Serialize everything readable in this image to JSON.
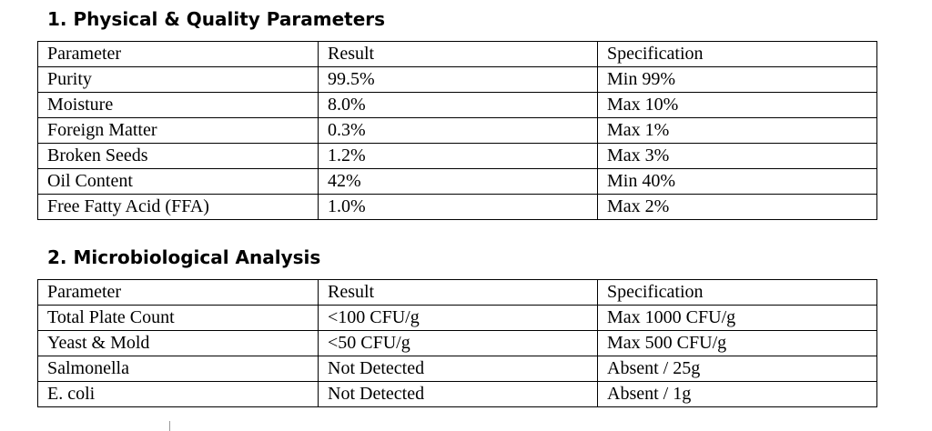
{
  "sections": [
    {
      "title": "1. Physical & Quality Parameters",
      "table": {
        "header": [
          "Parameter",
          "Result",
          "Specification"
        ],
        "rows": [
          [
            "Purity",
            "99.5%",
            "Min 99%"
          ],
          [
            "Moisture",
            "8.0%",
            "Max 10%"
          ],
          [
            "Foreign Matter",
            "0.3%",
            "Max 1%"
          ],
          [
            "Broken Seeds",
            "1.2%",
            "Max 3%"
          ],
          [
            "Oil Content",
            "42%",
            "Min 40%"
          ],
          [
            "Free Fatty Acid (FFA)",
            "1.0%",
            "Max 2%"
          ]
        ]
      }
    },
    {
      "title": "2. Microbiological Analysis",
      "table": {
        "header": [
          "Parameter",
          "Result",
          "Specification"
        ],
        "rows": [
          [
            "Total Plate Count",
            "<100 CFU/g",
            "Max 1000 CFU/g"
          ],
          [
            "Yeast & Mold",
            "<50 CFU/g",
            "Max 500 CFU/g"
          ],
          [
            "Salmonella",
            "Not Detected",
            "Absent / 25g"
          ],
          [
            "E. coli",
            "Not Detected",
            "Absent / 1g"
          ]
        ]
      }
    }
  ]
}
